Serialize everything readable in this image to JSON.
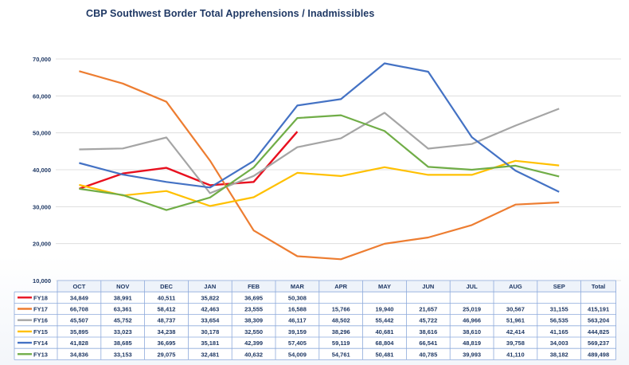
{
  "chart_data": {
    "type": "line",
    "title": "CBP Southwest Border Total Apprehensions / Inadmissibles",
    "xlabel": "",
    "ylabel": "",
    "ylim": [
      10000,
      70000
    ],
    "y_ticks": [
      "10,000",
      "20,000",
      "30,000",
      "40,000",
      "50,000",
      "60,000",
      "70,000"
    ],
    "y_tick_values": [
      10000,
      20000,
      30000,
      40000,
      50000,
      60000,
      70000
    ],
    "categories": [
      "OCT",
      "NOV",
      "DEC",
      "JAN",
      "FEB",
      "MAR",
      "APR",
      "MAY",
      "JUN",
      "JUL",
      "AUG",
      "SEP"
    ],
    "total_header": "Total",
    "grid": true,
    "legend": "table-below",
    "series": [
      {
        "name": "FY18",
        "color": "#e8101f",
        "values": [
          34849,
          38991,
          40511,
          35822,
          36695,
          50308,
          null,
          null,
          null,
          null,
          null,
          null
        ],
        "labels": [
          "34,849",
          "38,991",
          "40,511",
          "35,822",
          "36,695",
          "50,308",
          "",
          "",
          "",
          "",
          "",
          ""
        ],
        "total": ""
      },
      {
        "name": "FY17",
        "color": "#ed7d31",
        "values": [
          66708,
          63361,
          58412,
          42463,
          23555,
          16588,
          15766,
          19940,
          21657,
          25019,
          30567,
          31155
        ],
        "labels": [
          "66,708",
          "63,361",
          "58,412",
          "42,463",
          "23,555",
          "16,588",
          "15,766",
          "19,940",
          "21,657",
          "25,019",
          "30,567",
          "31,155"
        ],
        "total": "415,191"
      },
      {
        "name": "FY16",
        "color": "#a5a5a5",
        "values": [
          45507,
          45752,
          48737,
          33654,
          38309,
          46117,
          48502,
          55442,
          45722,
          46966,
          51961,
          56535
        ],
        "labels": [
          "45,507",
          "45,752",
          "48,737",
          "33,654",
          "38,309",
          "46,117",
          "48,502",
          "55,442",
          "45,722",
          "46,966",
          "51,961",
          "56,535"
        ],
        "total": "563,204"
      },
      {
        "name": "FY15",
        "color": "#ffc000",
        "values": [
          35895,
          33023,
          34238,
          30178,
          32550,
          39159,
          38296,
          40681,
          38616,
          38610,
          42414,
          41165
        ],
        "labels": [
          "35,895",
          "33,023",
          "34,238",
          "30,178",
          "32,550",
          "39,159",
          "38,296",
          "40,681",
          "38,616",
          "38,610",
          "42,414",
          "41,165"
        ],
        "total": "444,825"
      },
      {
        "name": "FY14",
        "color": "#4472c4",
        "values": [
          41828,
          38685,
          36695,
          35181,
          42399,
          57405,
          59119,
          68804,
          66541,
          48819,
          39758,
          34003
        ],
        "labels": [
          "41,828",
          "38,685",
          "36,695",
          "35,181",
          "42,399",
          "57,405",
          "59,119",
          "68,804",
          "66,541",
          "48,819",
          "39,758",
          "34,003"
        ],
        "total": "569,237"
      },
      {
        "name": "FY13",
        "color": "#70ad47",
        "values": [
          34836,
          33153,
          29075,
          32481,
          40632,
          54009,
          54761,
          50481,
          40785,
          39993,
          41110,
          38182
        ],
        "labels": [
          "34,836",
          "33,153",
          "29,075",
          "32,481",
          "40,632",
          "54,009",
          "54,761",
          "50,481",
          "40,785",
          "39,993",
          "41,110",
          "38,182"
        ],
        "total": "489,498"
      }
    ]
  }
}
